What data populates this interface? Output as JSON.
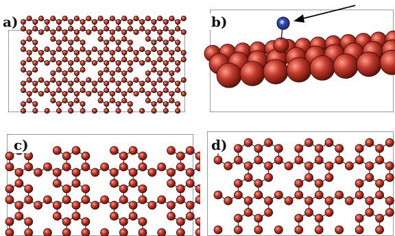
{
  "figure": {
    "panels": [
      {
        "label": "a)"
      },
      {
        "label": "b)"
      },
      {
        "label": "c)"
      },
      {
        "label": "d)"
      }
    ],
    "colors": {
      "atom": "#c0392b",
      "atom_dark": "#5a0f0a",
      "adatom": "#1a2a6c",
      "bond": "#3a2a22",
      "arrow": "#000000"
    }
  }
}
